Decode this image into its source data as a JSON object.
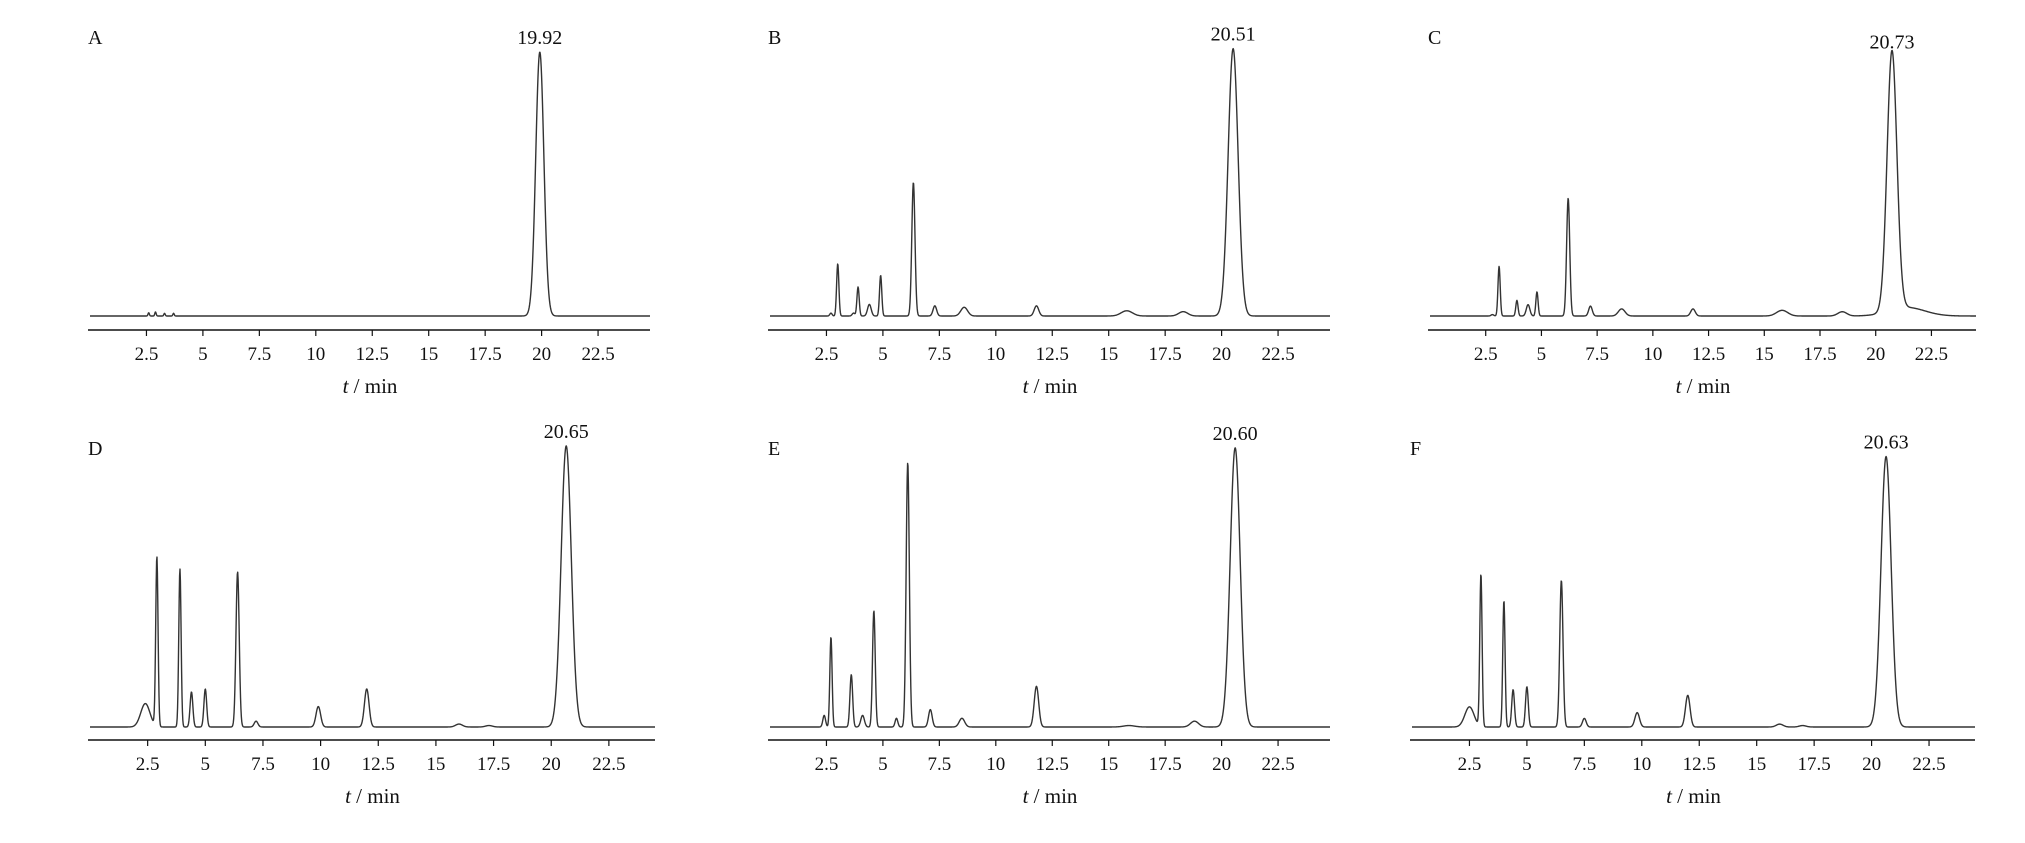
{
  "chart_data": [
    {
      "type": "line",
      "panel": "A",
      "peak_label": "19.92",
      "xlabel_var": "t",
      "xlabel_unit": " / min",
      "x_ticks": [
        2.5,
        5,
        7.5,
        10,
        12.5,
        15,
        17.5,
        20,
        22.5
      ],
      "x_tick_labels": [
        "2.5",
        "5",
        "7.5",
        "10",
        "12.5",
        "15",
        "17.5",
        "20",
        "22.5"
      ],
      "xlim": [
        0,
        24.8
      ],
      "ylim": [
        0,
        1
      ],
      "baseline": 0.03,
      "peaks": [
        {
          "t": 19.92,
          "h": 1.0,
          "w": 0.18
        },
        {
          "t": 2.6,
          "h": 0.012,
          "w": 0.03
        },
        {
          "t": 2.9,
          "h": 0.015,
          "w": 0.03
        },
        {
          "t": 3.3,
          "h": 0.01,
          "w": 0.03
        },
        {
          "t": 3.7,
          "h": 0.01,
          "w": 0.03
        }
      ]
    },
    {
      "type": "line",
      "panel": "B",
      "peak_label": "20.51",
      "xlabel_var": "t",
      "xlabel_unit": " / min",
      "x_ticks": [
        2.5,
        5,
        7.5,
        10,
        12.5,
        15,
        17.5,
        20,
        22.5
      ],
      "x_tick_labels": [
        "2.5",
        "5",
        "7.5",
        "10",
        "12.5",
        "15",
        "17.5",
        "20",
        "22.5"
      ],
      "xlim": [
        0,
        24.8
      ],
      "ylim": [
        0,
        1
      ],
      "baseline": 0.04,
      "peaks": [
        {
          "t": 20.51,
          "h": 0.96,
          "w": 0.22
        },
        {
          "t": 2.7,
          "h": 0.05,
          "w": 0.05
        },
        {
          "t": 3.0,
          "h": 0.22,
          "w": 0.05
        },
        {
          "t": 3.7,
          "h": 0.05,
          "w": 0.06
        },
        {
          "t": 3.9,
          "h": 0.14,
          "w": 0.05
        },
        {
          "t": 4.4,
          "h": 0.04,
          "w": 0.08
        },
        {
          "t": 4.9,
          "h": 0.18,
          "w": 0.05
        },
        {
          "t": 6.35,
          "h": 0.5,
          "w": 0.07
        },
        {
          "t": 7.3,
          "h": 0.035,
          "w": 0.08
        },
        {
          "t": 8.6,
          "h": 0.03,
          "w": 0.15
        },
        {
          "t": 11.8,
          "h": 0.075,
          "w": 0.1
        },
        {
          "t": 15.8,
          "h": 0.018,
          "w": 0.25
        },
        {
          "t": 18.3,
          "h": 0.015,
          "w": 0.2
        }
      ]
    },
    {
      "type": "line",
      "panel": "C",
      "peak_label": "20.73",
      "xlabel_var": "t",
      "xlabel_unit": " / min",
      "x_ticks": [
        2.5,
        5,
        7.5,
        10,
        12.5,
        15,
        17.5,
        20,
        22.5
      ],
      "x_tick_labels": [
        "2.5",
        "5",
        "7.5",
        "10",
        "12.5",
        "15",
        "17.5",
        "20",
        "22.5"
      ],
      "xlim": [
        0,
        24.5
      ],
      "ylim": [
        0,
        1
      ],
      "baseline": 0.045,
      "peaks": [
        {
          "t": 20.73,
          "h": 0.96,
          "w": 0.22
        },
        {
          "t": 2.8,
          "h": 0.05,
          "w": 0.06
        },
        {
          "t": 3.1,
          "h": 0.22,
          "w": 0.05
        },
        {
          "t": 3.9,
          "h": 0.1,
          "w": 0.05
        },
        {
          "t": 4.4,
          "h": 0.04,
          "w": 0.08
        },
        {
          "t": 4.8,
          "h": 0.13,
          "w": 0.05
        },
        {
          "t": 6.2,
          "h": 0.46,
          "w": 0.07
        },
        {
          "t": 7.2,
          "h": 0.035,
          "w": 0.08
        },
        {
          "t": 8.6,
          "h": 0.025,
          "w": 0.15
        },
        {
          "t": 11.8,
          "h": 0.07,
          "w": 0.1
        },
        {
          "t": 15.8,
          "h": 0.02,
          "w": 0.25
        },
        {
          "t": 18.5,
          "h": 0.015,
          "w": 0.2
        },
        {
          "t": 21.4,
          "h": 0.03,
          "w": 0.8
        }
      ]
    },
    {
      "type": "line",
      "panel": "D",
      "peak_label": "20.65",
      "xlabel_var": "t",
      "xlabel_unit": " / min",
      "x_ticks": [
        2.5,
        5,
        7.5,
        10,
        12.5,
        15,
        17.5,
        20,
        22.5
      ],
      "x_tick_labels": [
        "2.5",
        "5",
        "7.5",
        "10",
        "12.5",
        "15",
        "17.5",
        "20",
        "22.5"
      ],
      "xlim": [
        0,
        24.5
      ],
      "ylim": [
        0,
        1
      ],
      "baseline": 0.02,
      "peaks": [
        {
          "t": 20.65,
          "h": 0.98,
          "w": 0.22
        },
        {
          "t": 2.4,
          "h": 0.1,
          "w": 0.2
        },
        {
          "t": 2.9,
          "h": 0.6,
          "w": 0.05
        },
        {
          "t": 3.9,
          "h": 0.56,
          "w": 0.05
        },
        {
          "t": 4.4,
          "h": 0.14,
          "w": 0.06
        },
        {
          "t": 5.0,
          "h": 0.15,
          "w": 0.06
        },
        {
          "t": 6.4,
          "h": 0.55,
          "w": 0.07
        },
        {
          "t": 7.2,
          "h": 0.04,
          "w": 0.08
        },
        {
          "t": 9.9,
          "h": 0.09,
          "w": 0.1
        },
        {
          "t": 12.0,
          "h": 0.15,
          "w": 0.1
        },
        {
          "t": 16.0,
          "h": 0.03,
          "w": 0.15
        },
        {
          "t": 17.3,
          "h": 0.025,
          "w": 0.15
        }
      ]
    },
    {
      "type": "line",
      "panel": "E",
      "peak_label": "20.60",
      "xlabel_var": "t",
      "xlabel_unit": " / min",
      "x_ticks": [
        2.5,
        5,
        7.5,
        10,
        12.5,
        15,
        17.5,
        20,
        22.5
      ],
      "x_tick_labels": [
        "2.5",
        "5",
        "7.5",
        "10",
        "12.5",
        "15",
        "17.5",
        "20",
        "22.5"
      ],
      "xlim": [
        0,
        24.8
      ],
      "ylim": [
        0,
        1
      ],
      "baseline": 0.02,
      "peaks": [
        {
          "t": 20.6,
          "h": 0.98,
          "w": 0.22
        },
        {
          "t": 2.4,
          "h": 0.06,
          "w": 0.06
        },
        {
          "t": 2.7,
          "h": 0.33,
          "w": 0.05
        },
        {
          "t": 3.6,
          "h": 0.2,
          "w": 0.06
        },
        {
          "t": 4.1,
          "h": 0.06,
          "w": 0.08
        },
        {
          "t": 4.6,
          "h": 0.42,
          "w": 0.06
        },
        {
          "t": 5.6,
          "h": 0.05,
          "w": 0.06
        },
        {
          "t": 6.1,
          "h": 0.93,
          "w": 0.07
        },
        {
          "t": 7.1,
          "h": 0.08,
          "w": 0.08
        },
        {
          "t": 8.5,
          "h": 0.05,
          "w": 0.12
        },
        {
          "t": 11.8,
          "h": 0.16,
          "w": 0.1
        },
        {
          "t": 15.9,
          "h": 0.025,
          "w": 0.25
        },
        {
          "t": 18.8,
          "h": 0.04,
          "w": 0.18
        }
      ]
    },
    {
      "type": "line",
      "panel": "F",
      "peak_label": "20.63",
      "xlabel_var": "t",
      "xlabel_unit": " / min",
      "x_ticks": [
        2.5,
        5,
        7.5,
        10,
        12.5,
        15,
        17.5,
        20,
        22.5
      ],
      "x_tick_labels": [
        "2.5",
        "5",
        "7.5",
        "10",
        "12.5",
        "15",
        "17.5",
        "20",
        "22.5"
      ],
      "xlim": [
        0,
        24.5
      ],
      "ylim": [
        0,
        1
      ],
      "baseline": 0.02,
      "peaks": [
        {
          "t": 20.63,
          "h": 0.96,
          "w": 0.22
        },
        {
          "t": 2.5,
          "h": 0.09,
          "w": 0.2
        },
        {
          "t": 3.0,
          "h": 0.55,
          "w": 0.05
        },
        {
          "t": 4.0,
          "h": 0.46,
          "w": 0.05
        },
        {
          "t": 4.4,
          "h": 0.15,
          "w": 0.06
        },
        {
          "t": 5.0,
          "h": 0.16,
          "w": 0.06
        },
        {
          "t": 6.5,
          "h": 0.53,
          "w": 0.07
        },
        {
          "t": 7.5,
          "h": 0.05,
          "w": 0.08
        },
        {
          "t": 9.8,
          "h": 0.07,
          "w": 0.1
        },
        {
          "t": 12.0,
          "h": 0.13,
          "w": 0.1
        },
        {
          "t": 16.0,
          "h": 0.03,
          "w": 0.15
        },
        {
          "t": 17.0,
          "h": 0.025,
          "w": 0.15
        }
      ]
    }
  ]
}
